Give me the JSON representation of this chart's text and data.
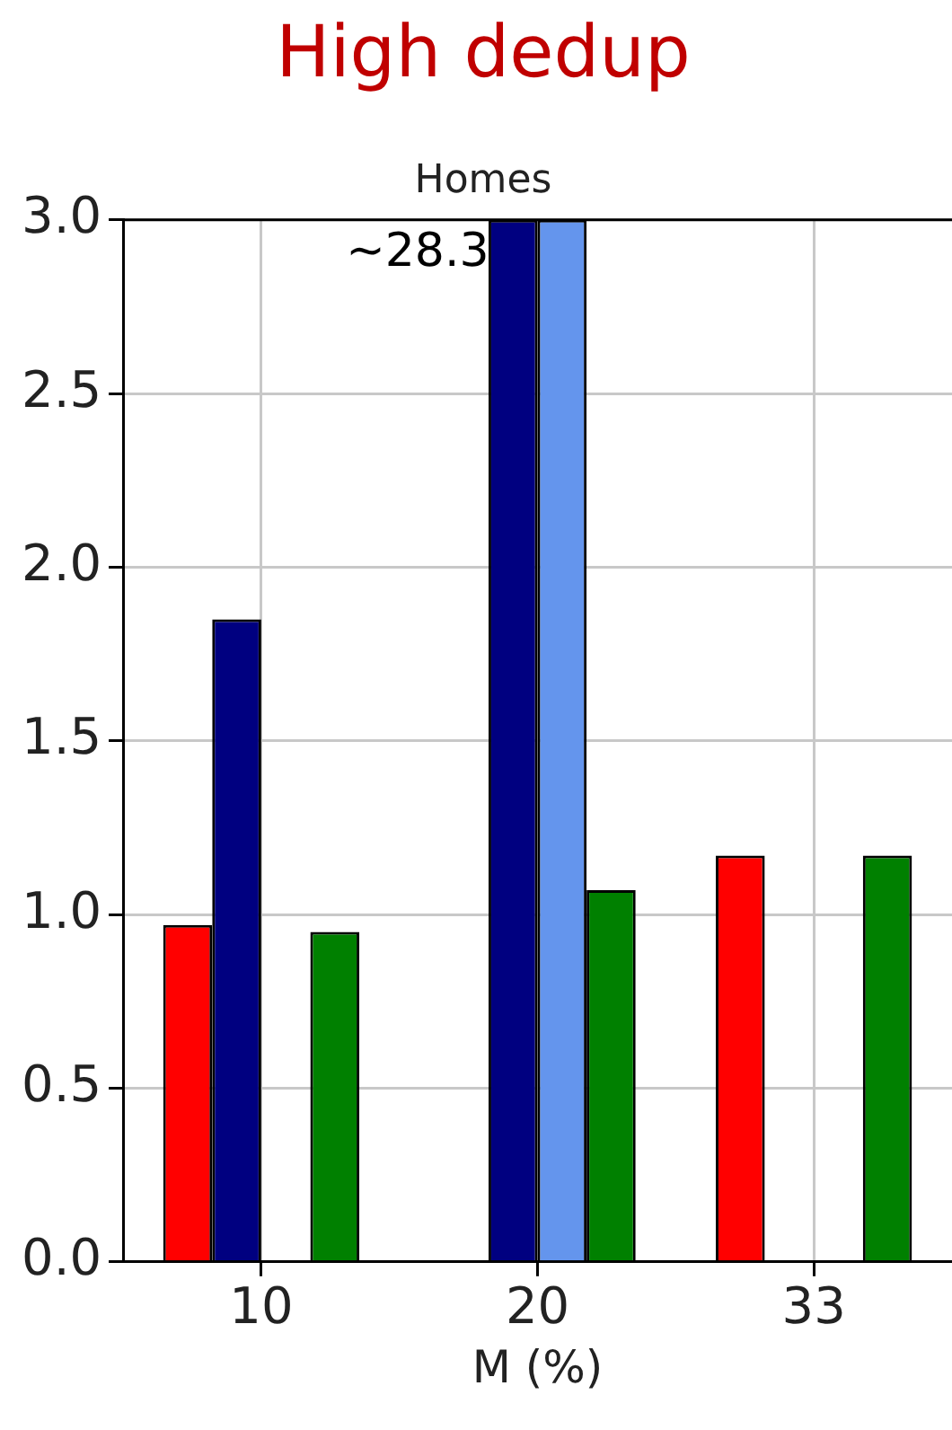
{
  "chart_data": {
    "type": "bar",
    "title": "High dedup",
    "subtitle": "Homes",
    "xlabel": "M (%)",
    "categories": [
      "10",
      "20",
      "33"
    ],
    "series": [
      {
        "color": "#ff0000",
        "values": [
          0.97,
          null,
          1.17
        ]
      },
      {
        "color": "#000080",
        "values": [
          1.85,
          3.0,
          null
        ]
      },
      {
        "color": "#6495ed",
        "values": [
          null,
          3.0,
          null
        ]
      },
      {
        "color": "#008000",
        "values": [
          0.95,
          1.07,
          1.17
        ]
      }
    ],
    "ylim": [
      0,
      3
    ],
    "yticks": [
      {
        "value": 0,
        "label": "0.0"
      },
      0.5,
      {
        "value": 1,
        "label": "1.0"
      },
      1.5,
      {
        "value": 2,
        "label": "2.0"
      },
      2.5,
      {
        "value": 3,
        "label": "3.0"
      }
    ],
    "grid": true,
    "legend": false,
    "annotations": [
      {
        "text": "~28.3",
        "x": "20",
        "y": 3
      }
    ]
  }
}
